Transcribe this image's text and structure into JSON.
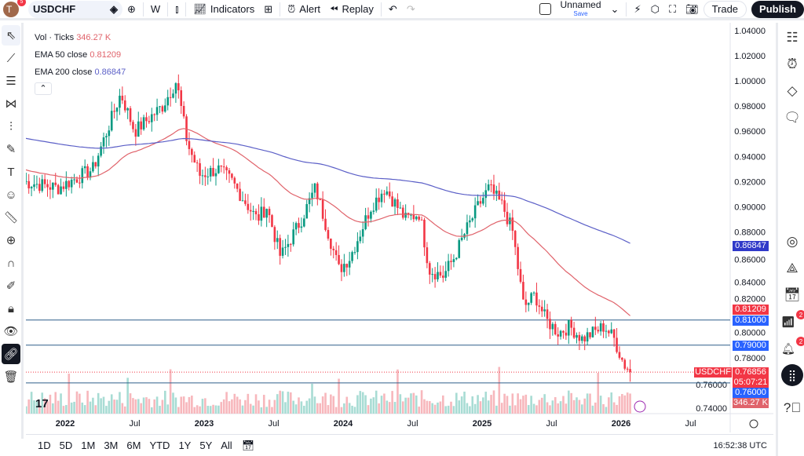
{
  "topbar": {
    "avatar": "T",
    "avatar_badge": "5",
    "symbol": "USDCHF",
    "interval": "W",
    "indicators": "Indicators",
    "alert": "Alert",
    "replay": "Replay",
    "layout_name": "Unnamed",
    "layout_save": "Save",
    "trade": "Trade",
    "publish": "Publish"
  },
  "legend": {
    "vol_label": "Vol · Ticks",
    "vol_value": "346.27 K",
    "ema50_label": "EMA 50 close",
    "ema50_value": "0.81209",
    "ema200_label": "EMA 200 close",
    "ema200_value": "0.86847"
  },
  "price_labels": {
    "ema200": "0.86847",
    "ema50": "0.81209",
    "line1": "0.81000",
    "line2": "0.79000",
    "symbol": "USDCHF",
    "last": "0.76856",
    "countdown": "05:07:21",
    "line3": "0.76000",
    "volume": "346.27 K"
  },
  "right_badges": {
    "signals": "2",
    "alerts": "2"
  },
  "bottom": {
    "ranges": [
      "1D",
      "5D",
      "1M",
      "3M",
      "6M",
      "YTD",
      "1Y",
      "5Y",
      "All"
    ],
    "clock": "16:52:38 UTC"
  },
  "colors": {
    "up": "#089981",
    "down": "#f23645",
    "ema50": "#e0636b",
    "ema200": "#5b5fc7",
    "hline": "#2f5f8a"
  },
  "chart_data": {
    "type": "candlestick",
    "symbol": "USDCHF",
    "interval": "W",
    "yticks": [
      "1.04000",
      "1.02000",
      "1.00000",
      "0.98000",
      "0.96000",
      "0.94000",
      "0.92000",
      "0.90000",
      "0.88000",
      "0.86000",
      "0.84000",
      "0.82000",
      "0.80000",
      "0.78000",
      "0.76000",
      "0.74000"
    ],
    "xticks": [
      {
        "label": "2022",
        "t": 2022.0
      },
      {
        "label": "Jul",
        "t": 2022.5
      },
      {
        "label": "2023",
        "t": 2023.0
      },
      {
        "label": "Jul",
        "t": 2023.5
      },
      {
        "label": "2024",
        "t": 2024.0
      },
      {
        "label": "Jul",
        "t": 2024.5
      },
      {
        "label": "2025",
        "t": 2025.0
      },
      {
        "label": "Jul",
        "t": 2025.5
      },
      {
        "label": "2026",
        "t": 2026.0
      },
      {
        "label": "Jul",
        "t": 2026.5
      }
    ],
    "ylim": [
      0.74,
      1.04
    ],
    "close_path": [
      [
        2021.7,
        0.92
      ],
      [
        2021.95,
        0.915
      ],
      [
        2022.2,
        0.93
      ],
      [
        2022.4,
        0.99
      ],
      [
        2022.5,
        0.96
      ],
      [
        2022.7,
        0.98
      ],
      [
        2022.8,
        1.0
      ],
      [
        2022.88,
        0.95
      ],
      [
        2022.97,
        0.925
      ],
      [
        2023.1,
        0.93
      ],
      [
        2023.2,
        0.92
      ],
      [
        2023.38,
        0.89
      ],
      [
        2023.45,
        0.9
      ],
      [
        2023.55,
        0.86
      ],
      [
        2023.7,
        0.89
      ],
      [
        2023.8,
        0.915
      ],
      [
        2023.97,
        0.85
      ],
      [
        2024.05,
        0.86
      ],
      [
        2024.2,
        0.9
      ],
      [
        2024.3,
        0.915
      ],
      [
        2024.45,
        0.89
      ],
      [
        2024.55,
        0.895
      ],
      [
        2024.62,
        0.85
      ],
      [
        2024.72,
        0.845
      ],
      [
        2024.8,
        0.86
      ],
      [
        2024.88,
        0.88
      ],
      [
        2024.97,
        0.9
      ],
      [
        2025.05,
        0.915
      ],
      [
        2025.15,
        0.9
      ],
      [
        2025.22,
        0.88
      ],
      [
        2025.3,
        0.82
      ],
      [
        2025.38,
        0.83
      ],
      [
        2025.46,
        0.81
      ],
      [
        2025.55,
        0.8
      ],
      [
        2025.63,
        0.805
      ],
      [
        2025.72,
        0.795
      ],
      [
        2025.8,
        0.8
      ],
      [
        2025.88,
        0.805
      ],
      [
        2025.95,
        0.795
      ],
      [
        2026.02,
        0.775
      ],
      [
        2026.08,
        0.76856
      ]
    ],
    "ema50_last": 0.81209,
    "ema200_last": 0.86847,
    "horizontal_lines": [
      0.81,
      0.79,
      0.76
    ],
    "last_price": 0.76856
  }
}
